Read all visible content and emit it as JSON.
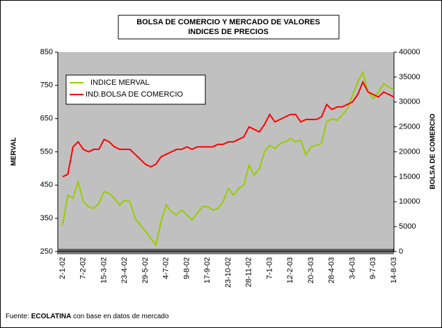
{
  "chart_data": {
    "type": "line",
    "title": "BOLSA DE COMERCIO Y MERCADO DE VALORES",
    "subtitle": "INDICES DE PRECIOS",
    "y_label": "MERVAL",
    "y2_label": "BOLSA DE COMERCIO",
    "legend": "top-left",
    "categories": [
      "2-1-02",
      null,
      null,
      null,
      "7-2-02",
      null,
      null,
      null,
      "15-3-02",
      null,
      null,
      null,
      "23-4-02",
      null,
      null,
      null,
      "29-5-02",
      null,
      null,
      null,
      "4-7-02",
      null,
      null,
      null,
      "9-8-02",
      null,
      null,
      null,
      "17-9-02",
      null,
      null,
      null,
      "23-10-02",
      null,
      null,
      null,
      "28-11-02",
      null,
      null,
      null,
      "7-1-03",
      null,
      null,
      null,
      "12-2-03",
      null,
      null,
      null,
      "20-3-03",
      null,
      null,
      null,
      "28-4-03",
      null,
      null,
      null,
      "3-6-03",
      null,
      null,
      null,
      "9-7-03",
      null,
      null,
      null,
      "14-8-03"
    ],
    "ylim": [
      250,
      850
    ],
    "yticks": [
      250,
      350,
      450,
      550,
      650,
      750,
      850
    ],
    "y2lim": [
      0,
      40000
    ],
    "y2ticks": [
      0,
      5000,
      10000,
      15000,
      20000,
      25000,
      30000,
      35000,
      40000
    ],
    "series": [
      {
        "name": "INDICE MERVAL",
        "color": "#99cc00",
        "values": [
          330,
          420,
          410,
          460,
          400,
          385,
          380,
          395,
          430,
          425,
          410,
          390,
          405,
          400,
          350,
          330,
          310,
          290,
          270,
          340,
          390,
          370,
          360,
          375,
          360,
          345,
          365,
          385,
          385,
          375,
          380,
          400,
          440,
          420,
          440,
          450,
          510,
          480,
          500,
          550,
          570,
          560,
          575,
          580,
          590,
          580,
          585,
          540,
          565,
          570,
          575,
          640,
          650,
          645,
          660,
          680,
          720,
          760,
          790,
          730,
          710,
          730,
          755,
          745,
          735
        ]
      },
      {
        "name": "IND.BOLSA DE COMERCIO",
        "color": "#ff0000",
        "axis": "y2",
        "values": [
          15000,
          15500,
          21000,
          22000,
          20500,
          20000,
          20500,
          20500,
          22500,
          22000,
          21000,
          20500,
          20500,
          20500,
          19500,
          18500,
          17500,
          17000,
          17500,
          19000,
          19500,
          20000,
          20500,
          20500,
          21000,
          20500,
          21000,
          21000,
          21000,
          21000,
          21500,
          21500,
          22000,
          22000,
          22500,
          23000,
          25000,
          24500,
          24000,
          25500,
          27500,
          26000,
          26500,
          27000,
          27500,
          27500,
          26000,
          26500,
          26500,
          26500,
          27000,
          29500,
          28500,
          29000,
          29000,
          29500,
          30000,
          31500,
          34000,
          32000,
          31500,
          31000,
          32000,
          31500,
          31000
        ]
      }
    ]
  },
  "footer": {
    "prefix": "Fuente:",
    "source": "ECOLATINA",
    "suffix": "con base en datos de mercado"
  }
}
